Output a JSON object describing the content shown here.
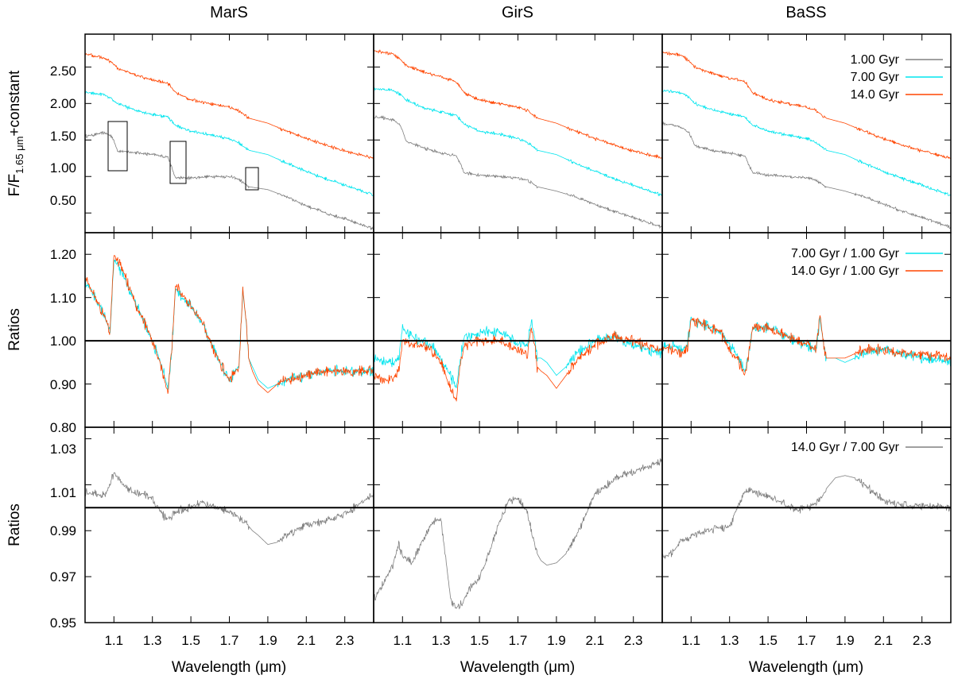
{
  "figure": {
    "columns": [
      "MarS",
      "GirS",
      "BaSS"
    ],
    "xlabel": "Wavelength (μm)",
    "x_ticks": [
      "1.1",
      "1.3",
      "1.5",
      "1.7",
      "1.9",
      "2.1",
      "2.3"
    ],
    "row_labels": {
      "top_prefix": "F/F",
      "top_subscript": "1.65 μm",
      "top_suffix": "+constant",
      "middle": "Ratios",
      "bottom": "Ratios"
    },
    "y_ticks": {
      "top": [
        "0.50",
        "1.00",
        "1.50",
        "2.00",
        "2.50"
      ],
      "middle": [
        "0.80",
        "0.90",
        "1.00",
        "1.10",
        "1.20"
      ],
      "bottom": [
        "0.95",
        "0.97",
        "0.99",
        "1.01",
        "1.03"
      ]
    },
    "legends": {
      "top": [
        "1.00 Gyr",
        "7.00 Gyr",
        "14.0 Gyr"
      ],
      "middle": [
        "7.00 Gyr / 1.00 Gyr",
        "14.0 Gyr / 1.00 Gyr"
      ],
      "bottom": [
        "14.0 Gyr / 7.00 Gyr"
      ]
    },
    "colors": {
      "gyr1": "#808080",
      "gyr7": "#00e5ee",
      "gyr14": "#ff4500",
      "ratio_bottom": "#808080"
    }
  },
  "chart_data": [
    {
      "type": "line",
      "panel": "MarS / spectra",
      "xlim": [
        0.95,
        2.45
      ],
      "ylim": [
        0.23,
        2.95
      ],
      "x": [
        0.95,
        1.05,
        1.09,
        1.12,
        1.2,
        1.3,
        1.38,
        1.42,
        1.5,
        1.6,
        1.7,
        1.75,
        1.8,
        1.9,
        2.0,
        2.1,
        2.2,
        2.3,
        2.45
      ],
      "series": [
        {
          "name": "1.00 Gyr",
          "values": [
            1.55,
            1.6,
            1.55,
            1.35,
            1.33,
            1.3,
            1.27,
            0.98,
            0.98,
            1.0,
            1.0,
            0.96,
            0.86,
            0.82,
            0.72,
            0.6,
            0.5,
            0.42,
            0.28
          ]
        },
        {
          "name": "7.00 Gyr",
          "values": [
            2.15,
            2.12,
            2.05,
            2.0,
            1.92,
            1.85,
            1.82,
            1.7,
            1.62,
            1.57,
            1.52,
            1.46,
            1.36,
            1.3,
            1.18,
            1.07,
            0.97,
            0.88,
            0.74
          ]
        },
        {
          "name": "14.0 Gyr",
          "values": [
            2.68,
            2.62,
            2.56,
            2.48,
            2.4,
            2.32,
            2.28,
            2.15,
            2.05,
            2.0,
            1.95,
            1.9,
            1.8,
            1.73,
            1.62,
            1.52,
            1.43,
            1.35,
            1.25
          ]
        }
      ]
    },
    {
      "type": "line",
      "panel": "GirS / spectra",
      "xlim": [
        0.95,
        2.45
      ],
      "ylim": [
        0.23,
        2.95
      ],
      "x": [
        0.95,
        1.05,
        1.09,
        1.12,
        1.2,
        1.3,
        1.38,
        1.42,
        1.5,
        1.6,
        1.7,
        1.75,
        1.8,
        1.9,
        2.0,
        2.1,
        2.2,
        2.3,
        2.45
      ],
      "series": [
        {
          "name": "1.00 Gyr",
          "values": [
            1.82,
            1.78,
            1.7,
            1.48,
            1.4,
            1.32,
            1.28,
            1.05,
            1.02,
            1.0,
            0.98,
            0.95,
            0.86,
            0.8,
            0.72,
            0.62,
            0.52,
            0.44,
            0.3
          ]
        },
        {
          "name": "7.00 Gyr",
          "values": [
            2.2,
            2.18,
            2.12,
            2.05,
            1.95,
            1.88,
            1.84,
            1.72,
            1.62,
            1.58,
            1.52,
            1.47,
            1.36,
            1.3,
            1.18,
            1.07,
            0.97,
            0.88,
            0.74
          ]
        },
        {
          "name": "14.0 Gyr",
          "values": [
            2.72,
            2.68,
            2.6,
            2.52,
            2.44,
            2.36,
            2.3,
            2.15,
            2.05,
            2.0,
            1.95,
            1.9,
            1.8,
            1.73,
            1.62,
            1.52,
            1.43,
            1.35,
            1.25
          ]
        }
      ]
    },
    {
      "type": "line",
      "panel": "BaSS / spectra",
      "xlim": [
        0.95,
        2.45
      ],
      "ylim": [
        0.23,
        2.95
      ],
      "x": [
        0.95,
        1.05,
        1.09,
        1.12,
        1.2,
        1.3,
        1.38,
        1.42,
        1.5,
        1.6,
        1.7,
        1.75,
        1.8,
        1.9,
        2.0,
        2.1,
        2.2,
        2.3,
        2.45
      ],
      "series": [
        {
          "name": "1.00 Gyr",
          "values": [
            1.72,
            1.68,
            1.6,
            1.42,
            1.36,
            1.32,
            1.28,
            1.05,
            1.02,
            1.0,
            0.98,
            0.95,
            0.86,
            0.8,
            0.72,
            0.62,
            0.52,
            0.44,
            0.3
          ]
        },
        {
          "name": "7.00 Gyr",
          "values": [
            2.18,
            2.15,
            2.08,
            2.0,
            1.92,
            1.86,
            1.82,
            1.7,
            1.62,
            1.57,
            1.52,
            1.47,
            1.36,
            1.3,
            1.18,
            1.07,
            0.97,
            0.88,
            0.74
          ]
        },
        {
          "name": "14.0 Gyr",
          "values": [
            2.7,
            2.66,
            2.58,
            2.5,
            2.42,
            2.35,
            2.3,
            2.15,
            2.05,
            2.0,
            1.95,
            1.9,
            1.8,
            1.73,
            1.62,
            1.52,
            1.43,
            1.35,
            1.25
          ]
        }
      ]
    },
    {
      "type": "line",
      "panel": "MarS / ratios to 1.00 Gyr",
      "xlim": [
        0.95,
        2.45
      ],
      "ylim": [
        0.8,
        1.25
      ],
      "reference_line": 1.0,
      "x": [
        0.95,
        1.0,
        1.05,
        1.08,
        1.1,
        1.15,
        1.2,
        1.25,
        1.3,
        1.35,
        1.38,
        1.4,
        1.42,
        1.45,
        1.5,
        1.55,
        1.6,
        1.65,
        1.7,
        1.75,
        1.77,
        1.79,
        1.8,
        1.82,
        1.85,
        1.9,
        1.95,
        2.0,
        2.1,
        2.2,
        2.3,
        2.45
      ],
      "series": [
        {
          "name": "7.00 Gyr / 1.00 Gyr",
          "values": [
            1.14,
            1.1,
            1.06,
            1.02,
            1.19,
            1.15,
            1.1,
            1.05,
            1.0,
            0.94,
            0.89,
            0.97,
            1.12,
            1.1,
            1.08,
            1.05,
            1.0,
            0.95,
            0.91,
            0.94,
            1.12,
            1.03,
            0.96,
            0.94,
            0.91,
            0.89,
            0.9,
            0.91,
            0.92,
            0.93,
            0.93,
            0.93
          ]
        },
        {
          "name": "14.0 Gyr / 1.00 Gyr",
          "values": [
            1.15,
            1.1,
            1.06,
            1.02,
            1.2,
            1.16,
            1.1,
            1.05,
            1.0,
            0.93,
            0.88,
            0.97,
            1.13,
            1.11,
            1.08,
            1.05,
            1.0,
            0.95,
            0.91,
            0.94,
            1.12,
            1.03,
            0.96,
            0.93,
            0.9,
            0.88,
            0.9,
            0.91,
            0.92,
            0.93,
            0.93,
            0.93
          ]
        }
      ]
    },
    {
      "type": "line",
      "panel": "GirS / ratios to 1.00 Gyr",
      "xlim": [
        0.95,
        2.45
      ],
      "ylim": [
        0.8,
        1.25
      ],
      "reference_line": 1.0,
      "x": [
        0.95,
        1.0,
        1.05,
        1.08,
        1.1,
        1.15,
        1.2,
        1.25,
        1.3,
        1.35,
        1.38,
        1.4,
        1.42,
        1.45,
        1.5,
        1.55,
        1.6,
        1.65,
        1.7,
        1.75,
        1.77,
        1.79,
        1.8,
        1.82,
        1.85,
        1.9,
        1.95,
        2.0,
        2.1,
        2.2,
        2.3,
        2.45
      ],
      "series": [
        {
          "name": "7.00 Gyr / 1.00 Gyr",
          "values": [
            0.96,
            0.95,
            0.95,
            0.96,
            1.03,
            1.01,
            1.0,
            0.99,
            0.96,
            0.92,
            0.89,
            0.96,
            1.01,
            1.01,
            1.02,
            1.02,
            1.02,
            1.01,
            0.99,
            0.99,
            1.05,
            1.0,
            0.96,
            0.96,
            0.95,
            0.92,
            0.94,
            0.97,
            1.0,
            1.01,
            0.99,
            0.97
          ]
        },
        {
          "name": "14.0 Gyr / 1.00 Gyr",
          "values": [
            0.92,
            0.91,
            0.91,
            0.93,
            1.0,
            0.99,
            0.99,
            0.98,
            0.95,
            0.89,
            0.86,
            0.94,
            0.99,
            0.99,
            1.0,
            1.0,
            1.0,
            0.99,
            0.98,
            0.97,
            1.03,
            0.98,
            0.94,
            0.93,
            0.92,
            0.89,
            0.92,
            0.95,
            0.99,
            1.01,
            1.0,
            0.98
          ]
        }
      ]
    },
    {
      "type": "line",
      "panel": "BaSS / ratios to 1.00 Gyr",
      "xlim": [
        0.95,
        2.45
      ],
      "ylim": [
        0.8,
        1.25
      ],
      "reference_line": 1.0,
      "x": [
        0.95,
        1.0,
        1.05,
        1.08,
        1.1,
        1.15,
        1.2,
        1.25,
        1.3,
        1.35,
        1.38,
        1.4,
        1.42,
        1.45,
        1.5,
        1.55,
        1.6,
        1.65,
        1.7,
        1.75,
        1.77,
        1.79,
        1.8,
        1.82,
        1.85,
        1.9,
        1.95,
        2.0,
        2.1,
        2.2,
        2.3,
        2.45
      ],
      "series": [
        {
          "name": "7.00 Gyr / 1.00 Gyr",
          "values": [
            0.99,
            0.99,
            0.98,
            0.99,
            1.05,
            1.04,
            1.03,
            1.02,
            0.99,
            0.96,
            0.93,
            0.97,
            1.03,
            1.03,
            1.03,
            1.02,
            1.01,
            1.0,
            0.99,
            0.98,
            1.05,
            0.99,
            0.96,
            0.96,
            0.96,
            0.95,
            0.96,
            0.97,
            0.98,
            0.97,
            0.96,
            0.95
          ]
        },
        {
          "name": "14.0 Gyr / 1.00 Gyr",
          "values": [
            0.98,
            0.98,
            0.97,
            0.98,
            1.05,
            1.04,
            1.03,
            1.02,
            0.98,
            0.95,
            0.92,
            0.97,
            1.03,
            1.03,
            1.03,
            1.02,
            1.01,
            1.0,
            0.99,
            0.98,
            1.06,
            0.99,
            0.96,
            0.96,
            0.96,
            0.96,
            0.97,
            0.98,
            0.98,
            0.97,
            0.97,
            0.96
          ]
        }
      ]
    },
    {
      "type": "line",
      "panel": "MarS / 14.0 Gyr / 7.00 Gyr",
      "xlim": [
        0.95,
        2.45
      ],
      "ylim": [
        0.95,
        1.035
      ],
      "reference_line": 1.0,
      "x": [
        0.95,
        1.0,
        1.05,
        1.08,
        1.1,
        1.15,
        1.2,
        1.25,
        1.3,
        1.35,
        1.38,
        1.4,
        1.42,
        1.45,
        1.5,
        1.55,
        1.6,
        1.65,
        1.7,
        1.75,
        1.77,
        1.79,
        1.8,
        1.82,
        1.85,
        1.9,
        1.95,
        2.0,
        2.1,
        2.2,
        2.3,
        2.45
      ],
      "series": [
        {
          "name": "14.0 Gyr / 7.00 Gyr",
          "values": [
            1.007,
            1.006,
            1.005,
            1.01,
            1.015,
            1.01,
            1.007,
            1.006,
            1.004,
            0.997,
            0.995,
            0.996,
            0.998,
            0.999,
            1.0,
            1.003,
            1.001,
            1.0,
            0.998,
            0.996,
            0.994,
            0.994,
            0.992,
            0.99,
            0.988,
            0.984,
            0.985,
            0.988,
            0.993,
            0.994,
            0.997,
            1.006
          ]
        }
      ]
    },
    {
      "type": "line",
      "panel": "GirS / 14.0 Gyr / 7.00 Gyr",
      "xlim": [
        0.95,
        2.45
      ],
      "ylim": [
        0.95,
        1.035
      ],
      "reference_line": 1.0,
      "x": [
        0.95,
        1.0,
        1.05,
        1.08,
        1.1,
        1.15,
        1.2,
        1.25,
        1.3,
        1.35,
        1.38,
        1.4,
        1.42,
        1.45,
        1.5,
        1.55,
        1.6,
        1.65,
        1.7,
        1.75,
        1.77,
        1.79,
        1.8,
        1.82,
        1.85,
        1.9,
        1.95,
        2.0,
        2.1,
        2.2,
        2.3,
        2.45
      ],
      "series": [
        {
          "name": "14.0 Gyr / 7.00 Gyr",
          "values": [
            0.96,
            0.967,
            0.975,
            0.984,
            0.979,
            0.976,
            0.985,
            0.993,
            0.995,
            0.96,
            0.956,
            0.958,
            0.96,
            0.965,
            0.97,
            0.98,
            0.993,
            1.003,
            1.004,
            0.998,
            0.99,
            0.983,
            0.98,
            0.977,
            0.975,
            0.976,
            0.98,
            0.987,
            1.006,
            1.012,
            1.016,
            1.02
          ]
        }
      ]
    },
    {
      "type": "line",
      "panel": "BaSS / 14.0 Gyr / 7.00 Gyr",
      "xlim": [
        0.95,
        2.45
      ],
      "ylim": [
        0.95,
        1.035
      ],
      "reference_line": 1.0,
      "x": [
        0.95,
        1.0,
        1.05,
        1.08,
        1.1,
        1.15,
        1.2,
        1.25,
        1.3,
        1.35,
        1.38,
        1.4,
        1.42,
        1.45,
        1.5,
        1.55,
        1.6,
        1.65,
        1.7,
        1.75,
        1.77,
        1.79,
        1.8,
        1.82,
        1.85,
        1.9,
        1.95,
        2.0,
        2.1,
        2.2,
        2.3,
        2.45
      ],
      "series": [
        {
          "name": "14.0 Gyr / 7.00 Gyr",
          "values": [
            0.978,
            0.98,
            0.985,
            0.987,
            0.988,
            0.989,
            0.99,
            0.991,
            0.992,
            1.002,
            1.007,
            1.008,
            1.007,
            1.006,
            1.005,
            1.003,
            1.001,
            0.999,
            1.0,
            1.002,
            1.004,
            1.006,
            1.008,
            1.01,
            1.013,
            1.014,
            1.013,
            1.01,
            1.003,
            1.001,
            1.001,
            1.0
          ]
        }
      ]
    }
  ]
}
